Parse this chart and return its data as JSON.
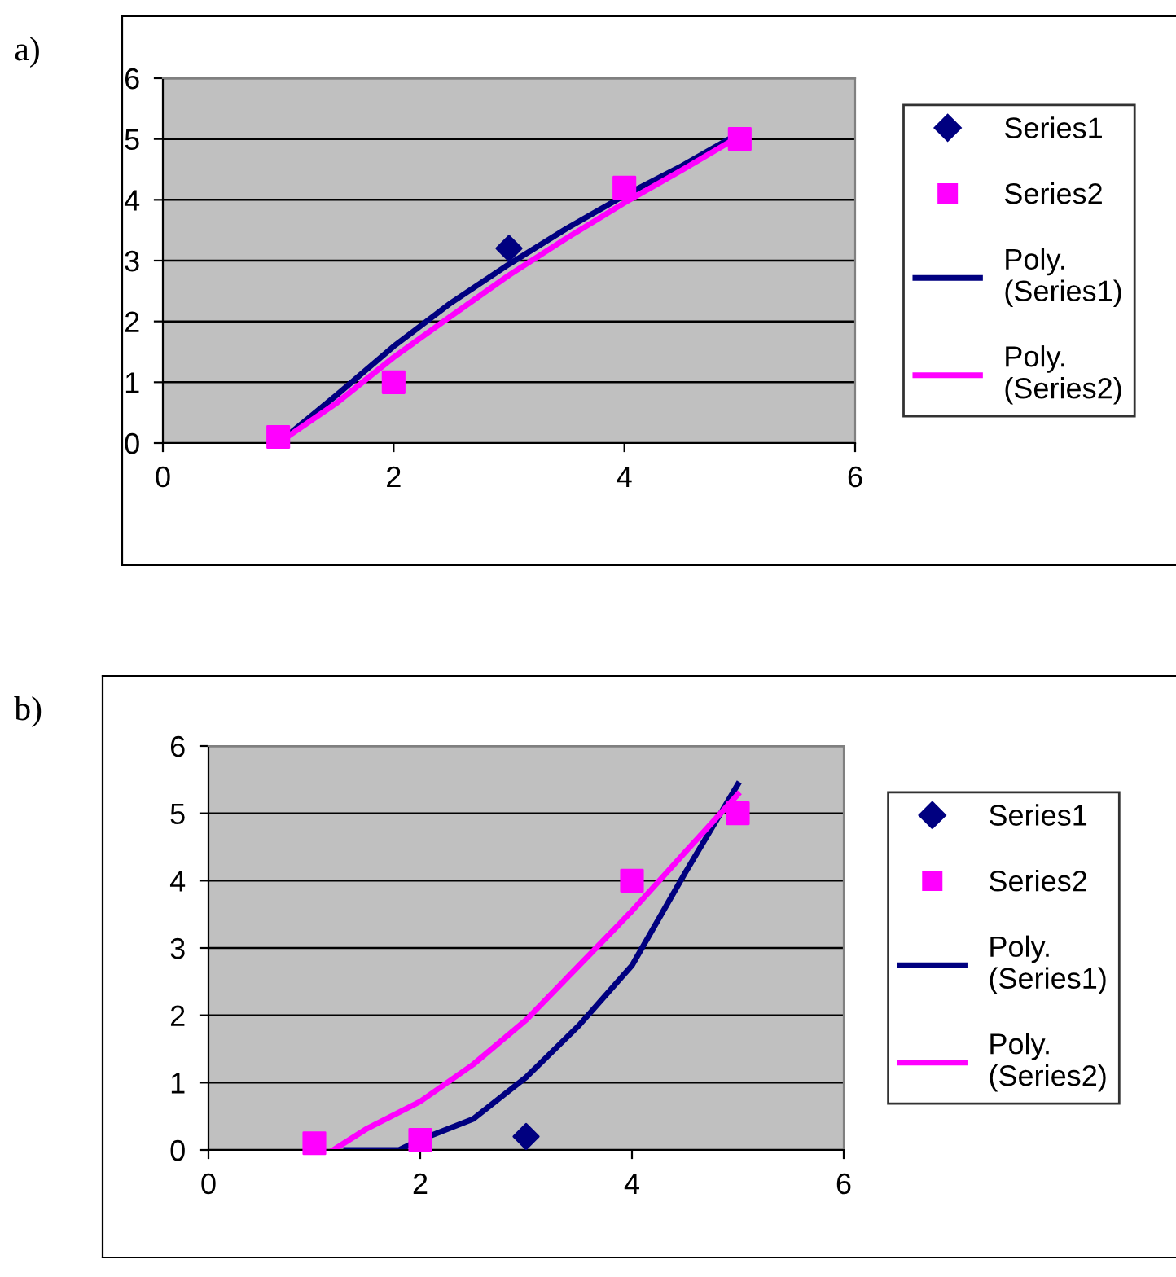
{
  "chart_data": [
    {
      "type": "scatter",
      "title": "a)",
      "xlim": [
        0,
        6
      ],
      "xticks": [
        0,
        2,
        4,
        6
      ],
      "ylim": [
        0,
        6
      ],
      "yticks": [
        0,
        1,
        2,
        3,
        4,
        5,
        6
      ],
      "grid": "y",
      "legend": "right",
      "series": [
        {
          "name": "Series1",
          "color": "#000080",
          "marker": "diamond",
          "x": [
            3
          ],
          "values": [
            3.2
          ]
        },
        {
          "name": "Series2",
          "color": "#ff00ff",
          "marker": "square",
          "x": [
            1,
            2,
            4,
            5
          ],
          "values": [
            0.1,
            1,
            4.2,
            5
          ]
        },
        {
          "name": "Poly.\n(Series1)",
          "type": "line",
          "color": "#000080",
          "marker": "none",
          "x": [
            1,
            1.5,
            2,
            2.5,
            3,
            3.5,
            4,
            4.5,
            5
          ],
          "values": [
            0,
            0.78,
            1.59,
            2.31,
            2.94,
            3.53,
            4.07,
            4.56,
            5.1
          ]
        },
        {
          "name": "Poly.\n(Series2)",
          "type": "line",
          "color": "#ff00ff",
          "marker": "none",
          "x": [
            1,
            1.5,
            2,
            2.5,
            3,
            3.5,
            4,
            4.5,
            5
          ],
          "values": [
            0,
            0.65,
            1.41,
            2.09,
            2.76,
            3.37,
            3.95,
            4.49,
            5.05
          ]
        }
      ]
    },
    {
      "type": "scatter",
      "title": "b)",
      "xlim": [
        0,
        6
      ],
      "xticks": [
        0,
        2,
        4,
        6
      ],
      "ylim": [
        0,
        6
      ],
      "yticks": [
        0,
        1,
        2,
        3,
        4,
        5,
        6
      ],
      "grid": "y",
      "legend": "right",
      "series": [
        {
          "name": "Series1",
          "color": "#000080",
          "marker": "diamond",
          "x": [
            3
          ],
          "values": [
            0.2
          ]
        },
        {
          "name": "Series2",
          "color": "#ff00ff",
          "marker": "square",
          "x": [
            1,
            2,
            4,
            5
          ],
          "values": [
            0.1,
            0.15,
            4,
            5
          ]
        },
        {
          "name": "Poly.\n(Series1)",
          "type": "line",
          "color": "#000080",
          "marker": "none",
          "x": [
            1.3,
            1.8,
            2,
            2.5,
            3,
            3.5,
            4,
            4.5,
            5
          ],
          "values": [
            0,
            0,
            0.15,
            0.46,
            1.08,
            1.85,
            2.74,
            4.11,
            5.43
          ]
        },
        {
          "name": "Poly.\n(Series2)",
          "type": "line",
          "color": "#ff00ff",
          "marker": "none",
          "x": [
            1.18,
            1.5,
            2,
            2.5,
            3,
            3.5,
            4,
            4.5,
            5
          ],
          "values": [
            0,
            0.32,
            0.72,
            1.27,
            1.93,
            2.74,
            3.55,
            4.42,
            5.28
          ]
        }
      ]
    }
  ]
}
